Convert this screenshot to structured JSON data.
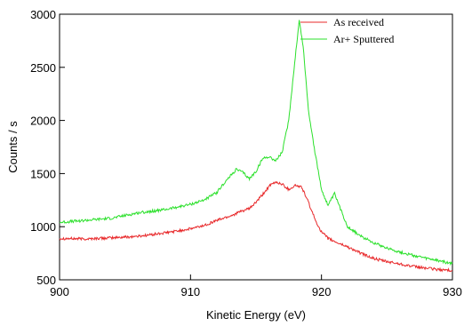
{
  "chart_data": {
    "type": "line",
    "xlabel": "Kinetic Energy (eV)",
    "ylabel": "Counts / s",
    "xlim": [
      900,
      930
    ],
    "ylim": [
      500,
      3000
    ],
    "xticks": [
      "900",
      "910",
      "920",
      "930"
    ],
    "yticks": [
      "500",
      "1000",
      "1500",
      "2000",
      "2500",
      "3000"
    ],
    "grid": false,
    "legend_position": "top-right",
    "series": [
      {
        "name": "As received",
        "color": "#e8282a",
        "x": [
          900,
          902,
          904,
          906,
          908,
          910,
          911,
          912,
          913,
          914,
          914.5,
          915,
          915.5,
          916,
          916.5,
          917,
          917.5,
          918,
          918.5,
          919,
          919.5,
          920,
          920.5,
          921,
          922,
          923,
          924,
          925,
          926,
          927,
          928,
          929,
          930
        ],
        "y": [
          890,
          885,
          895,
          910,
          940,
          980,
          1010,
          1060,
          1100,
          1150,
          1170,
          1230,
          1300,
          1380,
          1420,
          1400,
          1350,
          1390,
          1370,
          1230,
          1070,
          950,
          890,
          860,
          810,
          750,
          700,
          670,
          650,
          625,
          610,
          595,
          590
        ]
      },
      {
        "name": "Ar+ Sputtered",
        "color": "#2be02b",
        "x": [
          900,
          902,
          904,
          906,
          908,
          910,
          911,
          912,
          912.5,
          913,
          913.5,
          914,
          914.5,
          915,
          915.5,
          916,
          916.5,
          917,
          917.5,
          918,
          918.3,
          918.6,
          919,
          919.5,
          920,
          920.5,
          921,
          921.5,
          922,
          923,
          924,
          925,
          926,
          927,
          928,
          929,
          930
        ],
        "y": [
          1040,
          1060,
          1080,
          1130,
          1160,
          1210,
          1250,
          1320,
          1400,
          1470,
          1540,
          1510,
          1450,
          1520,
          1640,
          1660,
          1620,
          1700,
          2000,
          2600,
          2940,
          2700,
          2100,
          1700,
          1350,
          1200,
          1310,
          1150,
          1000,
          910,
          850,
          800,
          760,
          730,
          700,
          680,
          650
        ]
      }
    ]
  }
}
